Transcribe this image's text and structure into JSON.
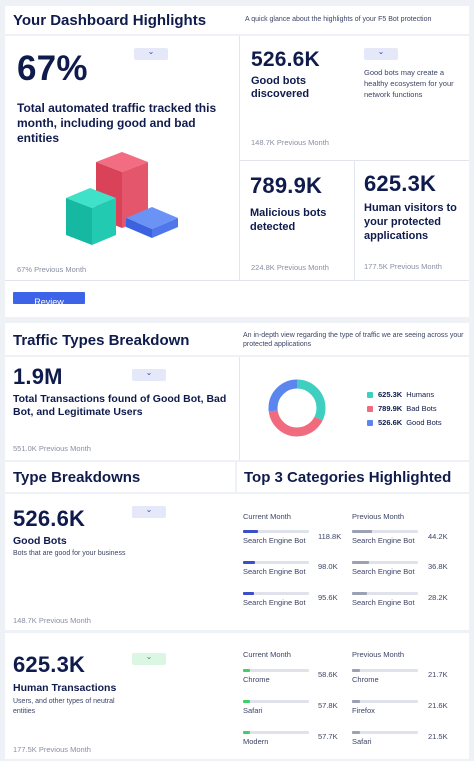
{
  "dashboard": {
    "title": "Your Dashboard Highlights",
    "subtitle": "A quick glance about the highlights of your F5 Bot protection",
    "main_card": {
      "value": "67%",
      "label": "Total automated traffic tracked this month, including good and bad entities",
      "previous": "67% Previous Month",
      "chip": "⌄"
    },
    "good_bots": {
      "value": "526.6K",
      "label": "Good bots discovered",
      "previous": "148.7K Previous Month",
      "chip": "⌄",
      "note": "Good bots may create a healthy ecosystem for your network functions"
    },
    "malicious_bots": {
      "value": "789.9K",
      "label": "Malicious bots detected",
      "previous": "224.8K Previous Month"
    },
    "human_visitors": {
      "value": "625.3K",
      "label": "Human visitors to your protected applications",
      "previous": "177.5K Previous Month"
    },
    "review_button": "Review"
  },
  "traffic": {
    "title": "Traffic Types Breakdown",
    "subtitle": "An in-depth view regarding the type of traffic we are seeing across your protected applications",
    "value": "1.9M",
    "label": "Total Transactions found of Good Bot, Bad Bot, and Legitimate Users",
    "previous": "551.0K Previous Month",
    "chip": "⌄",
    "legend": [
      {
        "value": "625.3K",
        "name": "Humans",
        "color": "#3ecfc0"
      },
      {
        "value": "789.9K",
        "name": "Bad Bots",
        "color": "#f06b7d"
      },
      {
        "value": "526.6K",
        "name": "Good Bots",
        "color": "#5b86ef"
      }
    ],
    "donut": [
      {
        "name": "Humans",
        "value": 625.3,
        "color": "#3ecfc0"
      },
      {
        "name": "Bad Bots",
        "value": 789.9,
        "color": "#f06b7d"
      },
      {
        "name": "Good Bots",
        "value": 526.6,
        "color": "#5b86ef"
      }
    ]
  },
  "type_breakdowns": {
    "title": "Type Breakdowns",
    "good": {
      "value": "526.6K",
      "label": "Good Bots",
      "desc": "Bots that are good for your business",
      "previous": "148.7K Previous Month",
      "chip": "⌄"
    },
    "human": {
      "value": "625.3K",
      "label": "Human Transactions",
      "desc": "Users, and other types of neutral entities",
      "previous": "177.5K Previous Month",
      "chip": "⌄"
    }
  },
  "categories": {
    "title": "Top 3 Categories Highlighted",
    "bots": {
      "current_head": "Current Month",
      "previous_head": "Previous Month",
      "current": [
        {
          "name": "Search Engine Bot",
          "value": "118.8K",
          "fill": 0.22
        },
        {
          "name": "Search Engine Bot",
          "value": "98.0K",
          "fill": 0.18
        },
        {
          "name": "Search Engine Bot",
          "value": "95.6K",
          "fill": 0.17
        }
      ],
      "previous": [
        {
          "name": "Search Engine Bot",
          "value": "44.2K",
          "fill": 0.3
        },
        {
          "name": "Search Engine Bot",
          "value": "36.8K",
          "fill": 0.26
        },
        {
          "name": "Search Engine Bot",
          "value": "28.2K",
          "fill": 0.22
        }
      ],
      "current_color": "#3d4fc8",
      "previous_color": "#9ca1b3"
    },
    "humans": {
      "current_head": "Current Month",
      "previous_head": "Previous Month",
      "current": [
        {
          "name": "Chrome",
          "value": "58.6K",
          "fill": 0.1
        },
        {
          "name": "Safari",
          "value": "57.8K",
          "fill": 0.1
        },
        {
          "name": "Modern",
          "value": "57.7K",
          "fill": 0.1
        }
      ],
      "previous": [
        {
          "name": "Chrome",
          "value": "21.7K",
          "fill": 0.12
        },
        {
          "name": "Firefox",
          "value": "21.6K",
          "fill": 0.12
        },
        {
          "name": "Safari",
          "value": "21.5K",
          "fill": 0.12
        }
      ],
      "current_color": "#3ecf6a",
      "previous_color": "#9ca1b3"
    }
  }
}
